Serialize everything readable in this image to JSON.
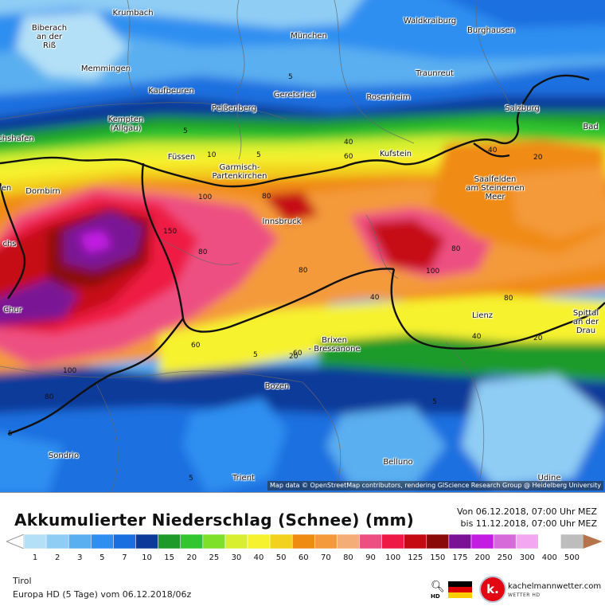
{
  "map": {
    "attribution": "Map data © OpenStreetMap contributors, rendering GIScience Research Group @ Heidelberg University",
    "places": [
      {
        "name": "Krumbach"
      },
      {
        "name": "Biberach\nan der\nRiß"
      },
      {
        "name": "Waldkraiburg"
      },
      {
        "name": "München"
      },
      {
        "name": "Burghausen"
      },
      {
        "name": "Memmingen"
      },
      {
        "name": "Traunreut"
      },
      {
        "name": "Kaufbeuren"
      },
      {
        "name": "Geretsried"
      },
      {
        "name": "Rosenheim"
      },
      {
        "name": "Kempten\n(Allgäu)"
      },
      {
        "name": "Peißenberg"
      },
      {
        "name": "Salzburg"
      },
      {
        "name": "chshafen"
      },
      {
        "name": "Bad"
      },
      {
        "name": "Füssen"
      },
      {
        "name": "Garmisch-\nPartenkirchen"
      },
      {
        "name": "Kufstein"
      },
      {
        "name": "Saalfelden\nam Steinernen\nMeer"
      },
      {
        "name": "Dornbirn"
      },
      {
        "name": "en"
      },
      {
        "name": "Innsbruck"
      },
      {
        "name": "chs"
      },
      {
        "name": "Chur"
      },
      {
        "name": "Spittal\nan der\nDrau"
      },
      {
        "name": "Lienz"
      },
      {
        "name": "Brixen\n- Bressanone"
      },
      {
        "name": "Bozen"
      },
      {
        "name": "Sondrio"
      },
      {
        "name": "Belluno"
      },
      {
        "name": "Trient"
      },
      {
        "name": "Udine"
      }
    ],
    "isolines": [
      "5",
      "5",
      "5",
      "10",
      "40",
      "60",
      "40",
      "20",
      "100",
      "80",
      "150",
      "80",
      "80",
      "80",
      "80",
      "100",
      "40",
      "40",
      "60",
      "60",
      "5",
      "20",
      "100",
      "80",
      "5",
      "5",
      "5",
      "20"
    ]
  },
  "footer": {
    "title": "Akkumulierter Niederschlag (Schnee) (mm)",
    "valid_from": "Von 06.12.2018, 07:00 Uhr MEZ",
    "valid_to": "bis 11.12.2018, 07:00 Uhr MEZ",
    "region": "Tirol",
    "model": "Europa HD (5 Tage) vom 06.12.2018/06z",
    "zoom_icon": "magnifier-icon",
    "hd_label": "HD",
    "brand_name": "kachelmannwetter.com",
    "brand_sub": "WETTER HD",
    "logo_letter": "k."
  },
  "legend": {
    "unit": "mm",
    "values": [
      "1",
      "2",
      "3",
      "5",
      "7",
      "10",
      "15",
      "20",
      "25",
      "30",
      "40",
      "50",
      "60",
      "70",
      "80",
      "90",
      "100",
      "125",
      "150",
      "175",
      "200",
      "250",
      "300",
      "400",
      "500"
    ],
    "colors": [
      "#b3e0f7",
      "#8fcdf4",
      "#5aaff0",
      "#2f8ff0",
      "#1a6fe0",
      "#0d3a9a",
      "#1e9a2a",
      "#33c52f",
      "#7fe02a",
      "#d7ef2f",
      "#f7f22f",
      "#f2d21f",
      "#f08b12",
      "#f49a3a",
      "#f5ad77",
      "#ee4f82",
      "#ee1a45",
      "#c60a14",
      "#8a0a0a",
      "#7a1296",
      "#c31de4",
      "#d66ad9",
      "#f2a7f0",
      "#ffffff",
      "#bdbdbd"
    ],
    "end_color": "#b5734a"
  }
}
